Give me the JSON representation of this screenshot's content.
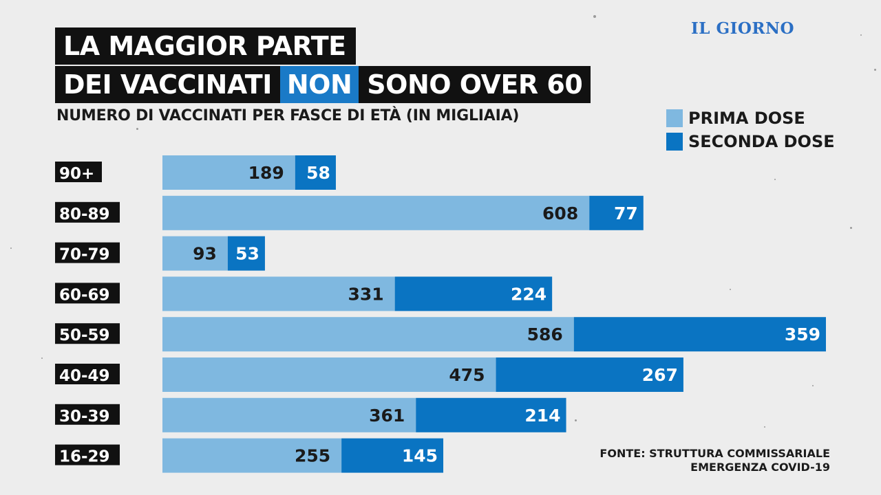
{
  "brand": {
    "logo_text": "IL GIORNO"
  },
  "title": {
    "line1": "LA MAGGIOR PARTE",
    "line2_pre": "DEI  VACCINATI",
    "line2_highlight": "NON",
    "line2_post": "SONO OVER 60"
  },
  "subtitle": "NUMERO DI VACCINATI PER FASCE DI ETÀ (IN MIGLIAIA)",
  "legend": [
    {
      "label": "PRIMA DOSE",
      "color": "#7fb8e0"
    },
    {
      "label": "SECONDA DOSE",
      "color": "#0a74c2"
    }
  ],
  "source": {
    "line1": "FONTE: STRUTTURA COMMISSARIALE",
    "line2": "EMERGENZA COVID-19"
  },
  "chart_data": {
    "type": "bar",
    "orientation": "horizontal",
    "stacked": true,
    "title": "LA MAGGIOR PARTE DEI VACCINATI NON SONO OVER 60",
    "subtitle": "NUMERO DI VACCINATI PER FASCE DI ETÀ (IN MIGLIAIA)",
    "unit": "migliaia",
    "categories": [
      "90+",
      "80-89",
      "70-79",
      "60-69",
      "50-59",
      "40-49",
      "30-39",
      "16-29"
    ],
    "series": [
      {
        "name": "PRIMA DOSE",
        "color": "#7fb8e0",
        "values": [
          189,
          608,
          93,
          331,
          586,
          475,
          361,
          255
        ]
      },
      {
        "name": "SECONDA DOSE",
        "color": "#0a74c2",
        "values": [
          58,
          77,
          53,
          224,
          359,
          267,
          214,
          145
        ]
      }
    ],
    "legend_position": "top-right",
    "grid": false
  }
}
